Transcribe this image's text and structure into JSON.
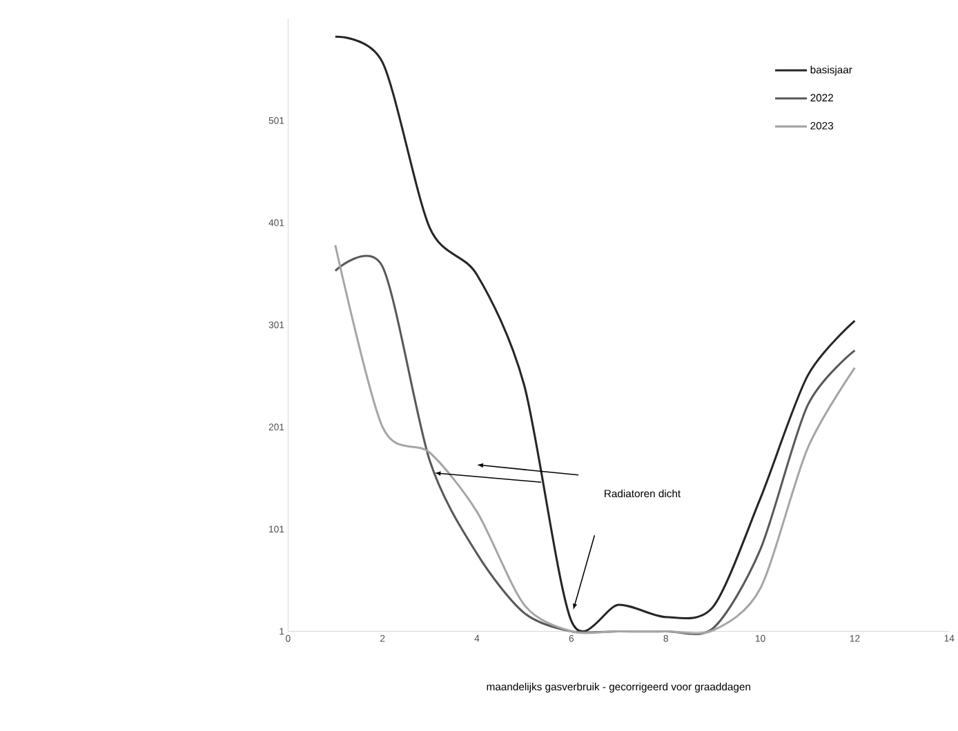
{
  "chart_data": {
    "type": "line",
    "xlabel": "maandelijks gasverbruik - gecorrigeerd voor graaddagen",
    "x": [
      1,
      2,
      3,
      4,
      5,
      6,
      7,
      8,
      9,
      10,
      11,
      12
    ],
    "series": [
      {
        "name": "basisjaar",
        "color": "#262626",
        "values": [
          583,
          558,
          396,
          350,
          242,
          11,
          27,
          15,
          25,
          131,
          251,
          305
        ]
      },
      {
        "name": "2022",
        "color": "#595959",
        "values": [
          354,
          358,
          168,
          77,
          19,
          1,
          1,
          1,
          4,
          81,
          222,
          276
        ]
      },
      {
        "name": "2023",
        "color": "#a6a6a6",
        "values": [
          379,
          201,
          176,
          118,
          27,
          1,
          1,
          1,
          2,
          43,
          180,
          259
        ]
      }
    ],
    "xlim": [
      0,
      14
    ],
    "xticks": [
      0,
      2,
      4,
      6,
      8,
      10,
      12,
      14
    ],
    "ylim": [
      1,
      601
    ],
    "yticks": [
      1,
      101,
      201,
      301,
      401,
      501
    ],
    "grid": false,
    "legend": "top right",
    "line_style": "solid",
    "marker": "none",
    "annotations": [
      "Radiatoren dicht"
    ]
  }
}
